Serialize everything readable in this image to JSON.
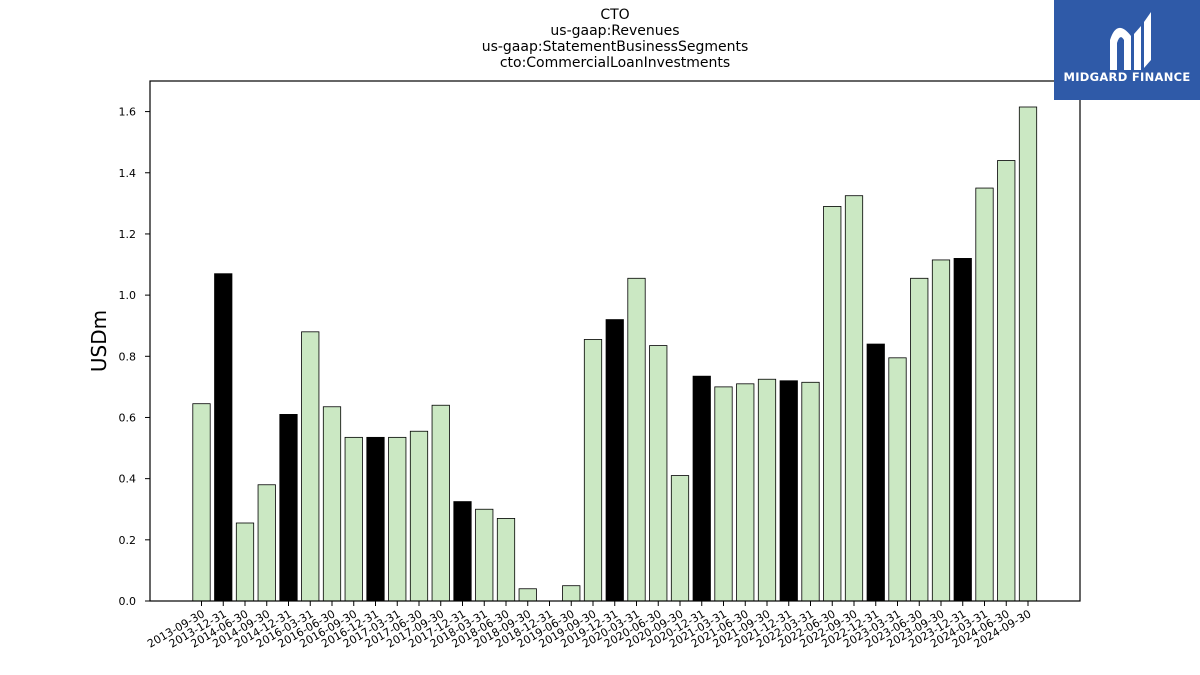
{
  "chart_data": {
    "type": "bar",
    "title_lines": [
      "CTO",
      "us-gaap:Revenues",
      "us-gaap:StatementBusinessSegments",
      "cto:CommercialLoanInvestments"
    ],
    "ylabel": "USDm",
    "xlabel": "",
    "ylim": [
      0,
      1.7
    ],
    "yticks": [
      "0.0",
      "0.2",
      "0.4",
      "0.6",
      "0.8",
      "1.0",
      "1.2",
      "1.4",
      "1.6"
    ],
    "grid": false,
    "colors": {
      "quarter": "#cbe8c3",
      "year_end": "#000000",
      "edge": "#000000"
    },
    "categories": [
      "2013-09-30",
      "2013-12-31",
      "2014-06-30",
      "2014-09-30",
      "2014-12-31",
      "2016-03-31",
      "2016-06-30",
      "2016-09-30",
      "2016-12-31",
      "2017-03-31",
      "2017-06-30",
      "2017-09-30",
      "2017-12-31",
      "2018-03-31",
      "2018-06-30",
      "2018-09-30",
      "2018-12-31",
      "2019-06-30",
      "2019-09-30",
      "2019-12-31",
      "2020-03-31",
      "2020-06-30",
      "2020-09-30",
      "2020-12-31",
      "2021-03-31",
      "2021-06-30",
      "2021-09-30",
      "2021-12-31",
      "2022-03-31",
      "2022-06-30",
      "2022-09-30",
      "2022-12-31",
      "2023-03-31",
      "2023-06-30",
      "2023-09-30",
      "2023-12-31",
      "2024-03-31",
      "2024-06-30",
      "2024-09-30"
    ],
    "values": [
      0.645,
      1.07,
      0.255,
      0.38,
      0.61,
      0.88,
      0.635,
      0.535,
      0.535,
      0.535,
      0.555,
      0.64,
      0.325,
      0.3,
      0.27,
      0.04,
      0.0,
      0.05,
      0.855,
      0.92,
      1.055,
      0.835,
      0.41,
      0.735,
      0.7,
      0.71,
      0.725,
      0.72,
      0.715,
      1.29,
      1.325,
      0.84,
      0.795,
      1.055,
      1.115,
      1.12,
      1.35,
      1.44,
      1.615
    ],
    "highlight": [
      false,
      true,
      false,
      false,
      true,
      false,
      false,
      false,
      true,
      false,
      false,
      false,
      true,
      false,
      false,
      false,
      true,
      false,
      false,
      true,
      false,
      false,
      false,
      true,
      false,
      false,
      false,
      true,
      false,
      false,
      false,
      true,
      false,
      false,
      false,
      true,
      false,
      false,
      false
    ]
  },
  "logo": {
    "text": "MIDGARD FINANCE",
    "icon": "midgard-logo-icon"
  }
}
